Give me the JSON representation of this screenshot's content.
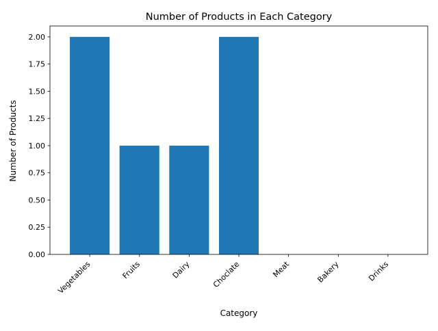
{
  "chart_data": {
    "type": "bar",
    "title": "Number of Products in Each Category",
    "xlabel": "Category",
    "ylabel": "Number of Products",
    "categories": [
      "Vegetables",
      "Fruits",
      "Dairy",
      "Choclate",
      "Meat",
      "Bakery",
      "Drinks"
    ],
    "values": [
      2,
      1,
      1,
      2,
      0,
      0,
      0
    ],
    "ylim": [
      0,
      2.1
    ],
    "yticks": [
      "0.00",
      "0.25",
      "0.50",
      "0.75",
      "1.00",
      "1.25",
      "1.50",
      "1.75",
      "2.00"
    ],
    "bar_color": "#1f77b4",
    "grid": false,
    "legend": "none"
  }
}
